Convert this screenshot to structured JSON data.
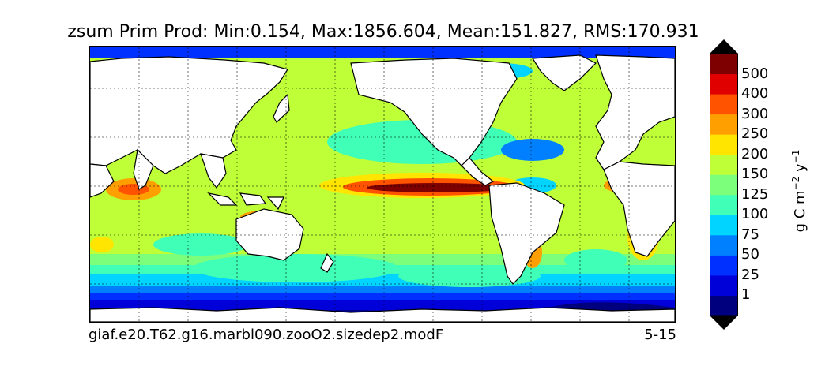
{
  "title": "zsum Prim Prod: Min:0.154, Max:1856.604, Mean:151.827, RMS:170.931",
  "footer": {
    "case_name": "giaf.e20.T62.g16.marbl090.zooO2.sizedep2.modF",
    "period": "5-15"
  },
  "colorbar": {
    "units_main": "g C m",
    "units_exp1": "−2",
    "units_mid": " y",
    "units_exp2": "−1",
    "tick_labels": [
      "1",
      "25",
      "50",
      "75",
      "100",
      "125",
      "150",
      "200",
      "250",
      "300",
      "400",
      "500"
    ],
    "levels": [
      0,
      1,
      25,
      50,
      75,
      100,
      125,
      150,
      200,
      250,
      300,
      400,
      500
    ],
    "colors": [
      "#00007f",
      "#0000d8",
      "#0030ff",
      "#0080ff",
      "#00d4ff",
      "#40ffb7",
      "#7cff7a",
      "#bfff38",
      "#ffe500",
      "#ff9f00",
      "#ff5300",
      "#e00000",
      "#7f0000"
    ],
    "extend": "both"
  },
  "map": {
    "projection": "cylindrical",
    "land_color": "#ffffff",
    "grid": "dashed"
  }
}
